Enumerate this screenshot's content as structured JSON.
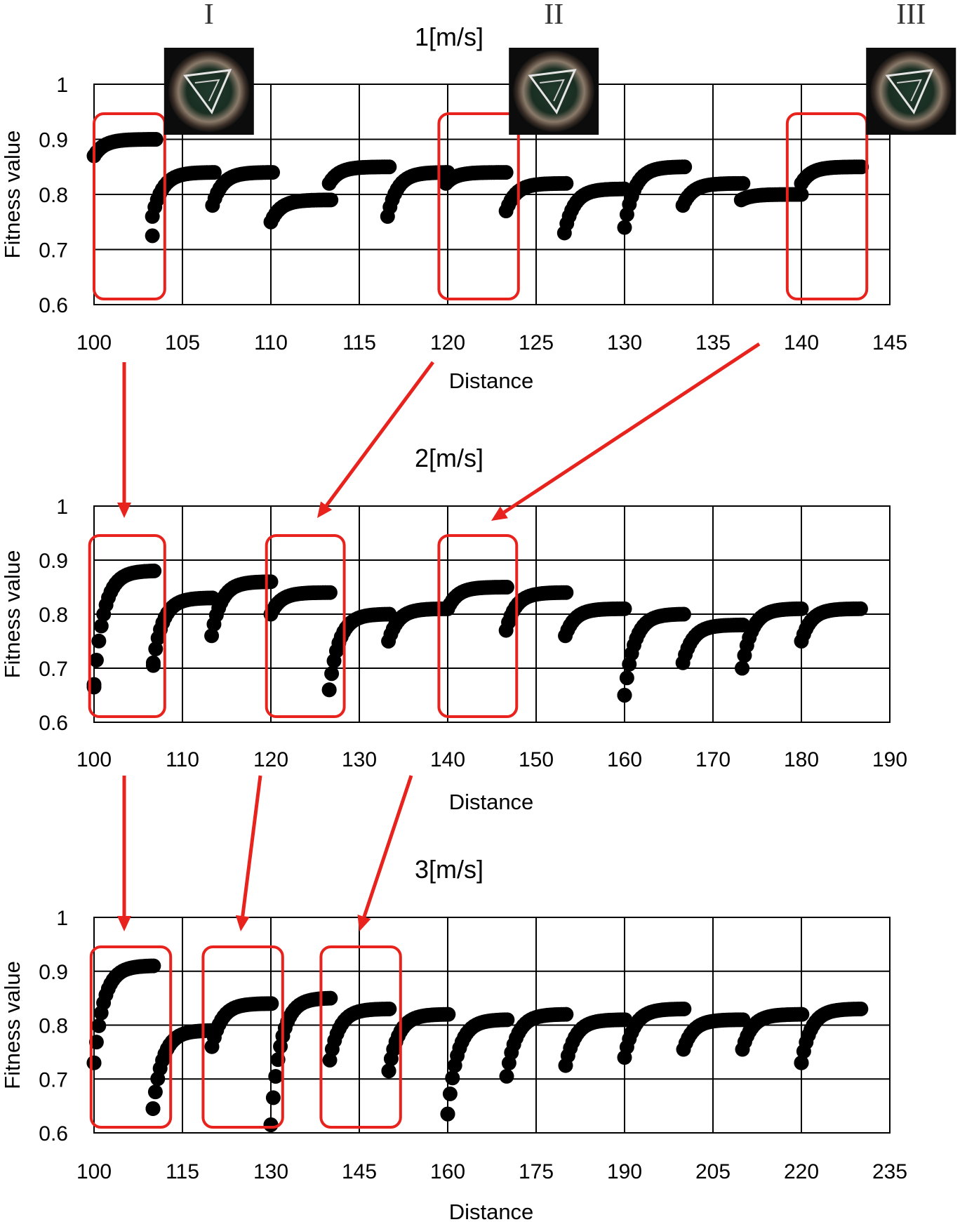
{
  "figure": {
    "landmarks": [
      "I",
      "II",
      "III"
    ],
    "colors": {
      "highlight": "#e8231d",
      "points": "#000000",
      "grid": "#000000"
    },
    "thumbnail_icon": "fisheye-camera-thumbnail"
  },
  "chart_data": [
    {
      "type": "scatter",
      "title": "1[m/s]",
      "xlabel": "Distance",
      "ylabel": "Fitness value",
      "xlim": [
        100,
        145
      ],
      "ylim": [
        0.6,
        1
      ],
      "xticks": [
        "100",
        "105",
        "110",
        "115",
        "120",
        "125",
        "130",
        "135",
        "140",
        "145"
      ],
      "yticks": [
        "0.6",
        "0.7",
        "0.8",
        "0.9",
        "1"
      ],
      "grid": true,
      "highlights": [
        [
          100,
          104
        ],
        [
          119.5,
          124
        ],
        [
          139.2,
          143.7
        ]
      ],
      "image_markers": [
        {
          "label": "I",
          "x": 106.5
        },
        {
          "label": "II",
          "x": 126
        },
        {
          "label": "III",
          "x": 146.2
        }
      ],
      "segments": [
        {
          "x0": 100.0,
          "x1": 103.5,
          "start": 0.87,
          "end": 0.9,
          "outliers": []
        },
        {
          "x0": 103.3,
          "x1": 106.8,
          "start": 0.76,
          "end": 0.84,
          "outliers": [
            [
              103.3,
              0.725
            ]
          ]
        },
        {
          "x0": 106.7,
          "x1": 110.1,
          "start": 0.78,
          "end": 0.84,
          "outliers": []
        },
        {
          "x0": 110.0,
          "x1": 113.4,
          "start": 0.75,
          "end": 0.79,
          "outliers": []
        },
        {
          "x0": 113.3,
          "x1": 116.7,
          "start": 0.82,
          "end": 0.85,
          "outliers": []
        },
        {
          "x0": 116.6,
          "x1": 120.0,
          "start": 0.76,
          "end": 0.84,
          "outliers": []
        },
        {
          "x0": 119.9,
          "x1": 123.3,
          "start": 0.82,
          "end": 0.84,
          "outliers": []
        },
        {
          "x0": 123.3,
          "x1": 126.7,
          "start": 0.77,
          "end": 0.82,
          "outliers": []
        },
        {
          "x0": 126.6,
          "x1": 130.0,
          "start": 0.73,
          "end": 0.81,
          "outliers": []
        },
        {
          "x0": 130.0,
          "x1": 133.4,
          "start": 0.74,
          "end": 0.85,
          "outliers": []
        },
        {
          "x0": 133.3,
          "x1": 136.7,
          "start": 0.78,
          "end": 0.82,
          "outliers": []
        },
        {
          "x0": 136.6,
          "x1": 140.0,
          "start": 0.79,
          "end": 0.8,
          "outliers": []
        },
        {
          "x0": 140.0,
          "x1": 143.4,
          "start": 0.82,
          "end": 0.85,
          "outliers": []
        }
      ]
    },
    {
      "type": "scatter",
      "title": "2[m/s]",
      "xlabel": "Distance",
      "ylabel": "Fitness value",
      "xlim": [
        100,
        190
      ],
      "ylim": [
        0.6,
        1
      ],
      "xticks": [
        "100",
        "110",
        "120",
        "130",
        "140",
        "150",
        "160",
        "170",
        "180",
        "190"
      ],
      "yticks": [
        "0.6",
        "0.7",
        "0.8",
        "0.9",
        "1"
      ],
      "grid": true,
      "highlights": [
        [
          99.5,
          108
        ],
        [
          119.5,
          128.3
        ],
        [
          139,
          147.8
        ]
      ],
      "image_markers": [],
      "segments": [
        {
          "x0": 100.0,
          "x1": 106.8,
          "start": 0.67,
          "end": 0.88,
          "outliers": [
            [
              100.0,
              0.665
            ]
          ]
        },
        {
          "x0": 106.7,
          "x1": 113.4,
          "start": 0.71,
          "end": 0.83,
          "outliers": [
            [
              106.7,
              0.705
            ]
          ]
        },
        {
          "x0": 113.3,
          "x1": 120.0,
          "start": 0.76,
          "end": 0.86,
          "outliers": []
        },
        {
          "x0": 120.0,
          "x1": 126.7,
          "start": 0.8,
          "end": 0.84,
          "outliers": []
        },
        {
          "x0": 126.6,
          "x1": 133.4,
          "start": 0.66,
          "end": 0.8,
          "outliers": [
            [
              126.6,
              0.66
            ]
          ]
        },
        {
          "x0": 133.3,
          "x1": 140.0,
          "start": 0.75,
          "end": 0.81,
          "outliers": []
        },
        {
          "x0": 140.0,
          "x1": 146.7,
          "start": 0.81,
          "end": 0.85,
          "outliers": []
        },
        {
          "x0": 146.6,
          "x1": 153.4,
          "start": 0.77,
          "end": 0.84,
          "outliers": []
        },
        {
          "x0": 153.3,
          "x1": 160.0,
          "start": 0.76,
          "end": 0.81,
          "outliers": []
        },
        {
          "x0": 160.0,
          "x1": 166.7,
          "start": 0.65,
          "end": 0.8,
          "outliers": [
            [
              160.0,
              0.65
            ]
          ]
        },
        {
          "x0": 166.6,
          "x1": 173.4,
          "start": 0.71,
          "end": 0.78,
          "outliers": []
        },
        {
          "x0": 173.3,
          "x1": 180.0,
          "start": 0.7,
          "end": 0.81,
          "outliers": [
            [
              173.3,
              0.7
            ]
          ]
        },
        {
          "x0": 180.0,
          "x1": 186.7,
          "start": 0.75,
          "end": 0.81,
          "outliers": []
        }
      ]
    },
    {
      "type": "scatter",
      "title": "3[m/s]",
      "xlabel": "Distance",
      "ylabel": "Fitness value",
      "xlim": [
        100,
        235
      ],
      "ylim": [
        0.6,
        1
      ],
      "xticks": [
        "100",
        "115",
        "130",
        "145",
        "160",
        "175",
        "190",
        "205",
        "220",
        "235"
      ],
      "yticks": [
        "0.6",
        "0.7",
        "0.8",
        "0.9",
        "1"
      ],
      "grid": true,
      "highlights": [
        [
          99.5,
          113
        ],
        [
          118.5,
          132
        ],
        [
          138.5,
          152
        ]
      ],
      "image_markers": [],
      "segments": [
        {
          "x0": 100.0,
          "x1": 110.1,
          "start": 0.73,
          "end": 0.91,
          "outliers": [
            [
              100.0,
              0.73
            ]
          ]
        },
        {
          "x0": 110.0,
          "x1": 120.1,
          "start": 0.645,
          "end": 0.79,
          "outliers": [
            [
              110.0,
              0.645
            ]
          ]
        },
        {
          "x0": 120.0,
          "x1": 130.1,
          "start": 0.76,
          "end": 0.84,
          "outliers": []
        },
        {
          "x0": 130.0,
          "x1": 140.1,
          "start": 0.615,
          "end": 0.85,
          "outliers": [
            [
              130.0,
              0.615
            ]
          ]
        },
        {
          "x0": 140.0,
          "x1": 150.1,
          "start": 0.735,
          "end": 0.83,
          "outliers": []
        },
        {
          "x0": 150.0,
          "x1": 160.1,
          "start": 0.715,
          "end": 0.82,
          "outliers": [
            [
              150.0,
              0.715
            ]
          ]
        },
        {
          "x0": 160.0,
          "x1": 170.1,
          "start": 0.635,
          "end": 0.81,
          "outliers": [
            [
              160.0,
              0.635
            ]
          ]
        },
        {
          "x0": 170.0,
          "x1": 180.1,
          "start": 0.705,
          "end": 0.82,
          "outliers": []
        },
        {
          "x0": 180.0,
          "x1": 190.1,
          "start": 0.725,
          "end": 0.81,
          "outliers": []
        },
        {
          "x0": 190.0,
          "x1": 200.1,
          "start": 0.74,
          "end": 0.83,
          "outliers": []
        },
        {
          "x0": 200.0,
          "x1": 210.1,
          "start": 0.755,
          "end": 0.81,
          "outliers": []
        },
        {
          "x0": 210.0,
          "x1": 220.1,
          "start": 0.755,
          "end": 0.82,
          "outliers": []
        },
        {
          "x0": 220.0,
          "x1": 230.1,
          "start": 0.73,
          "end": 0.83,
          "outliers": [
            [
              220.0,
              0.73
            ]
          ]
        }
      ]
    }
  ]
}
